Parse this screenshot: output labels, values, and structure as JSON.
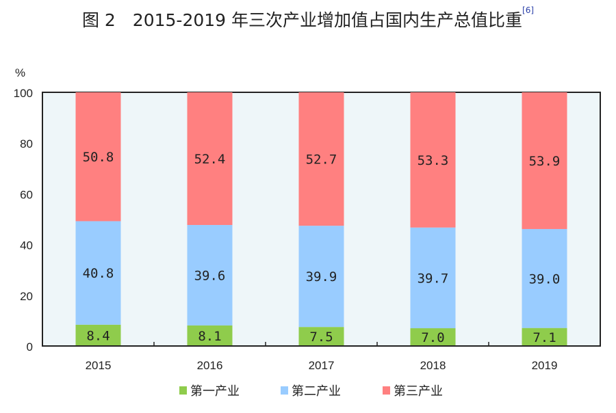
{
  "title": "图 2　2015-2019 年三次产业增加值占国内生产总值比重",
  "title_ref": "[6]",
  "chart_data": {
    "type": "bar",
    "stacked": true,
    "ylabel": "%",
    "ylim": [
      0,
      100
    ],
    "yticks": [
      0,
      20,
      40,
      60,
      80,
      100
    ],
    "grid": false,
    "legend_position": "bottom",
    "categories": [
      "2015",
      "2016",
      "2017",
      "2018",
      "2019"
    ],
    "series": [
      {
        "name": "第一产业",
        "color": "#8fcc4c",
        "values": [
          8.4,
          8.1,
          7.5,
          7.0,
          7.1
        ],
        "labels": [
          "8.4",
          "8.1",
          "7.5",
          "7.0",
          "7.1"
        ]
      },
      {
        "name": "第二产业",
        "color": "#99ccff",
        "values": [
          40.8,
          39.6,
          39.9,
          39.7,
          39.0
        ],
        "labels": [
          "40.8",
          "39.6",
          "39.9",
          "39.7",
          "39.0"
        ]
      },
      {
        "name": "第三产业",
        "color": "#ff8080",
        "values": [
          50.8,
          52.4,
          52.7,
          53.3,
          53.9
        ],
        "labels": [
          "50.8",
          "52.4",
          "52.7",
          "53.3",
          "53.9"
        ]
      }
    ],
    "plot_background": "#eef6f9"
  }
}
